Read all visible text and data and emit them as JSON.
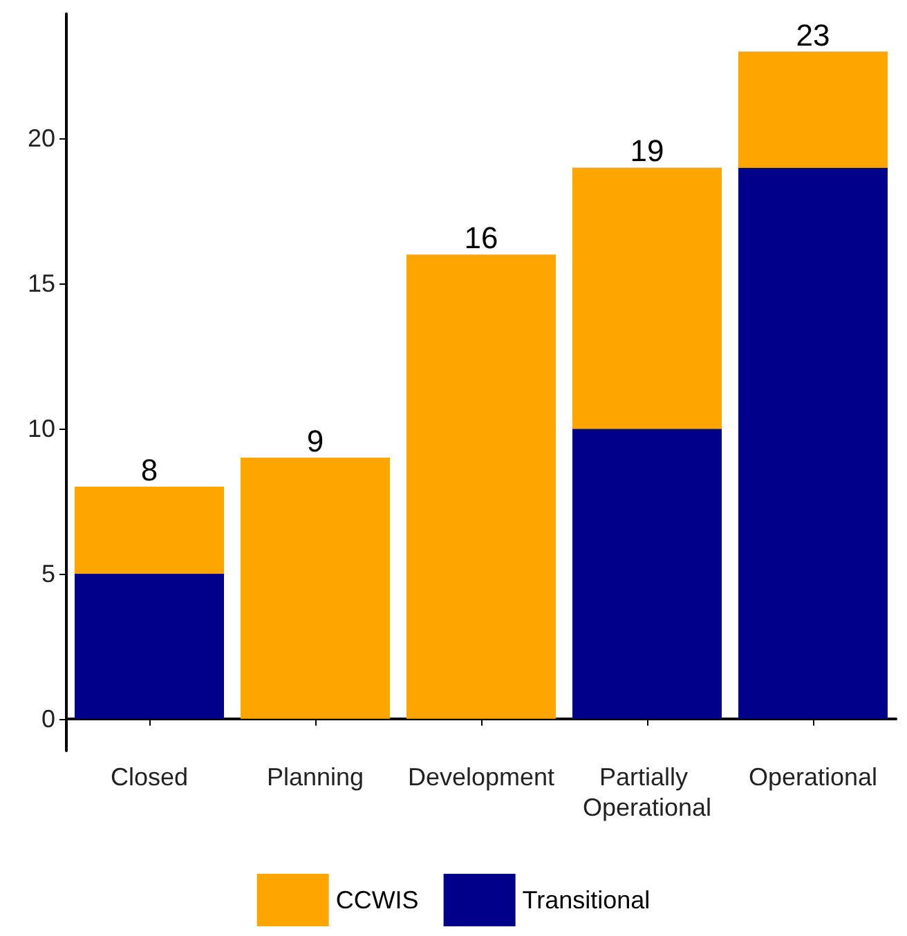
{
  "chart_data": {
    "type": "bar",
    "stacked": true,
    "categories": [
      "Closed",
      "Planning",
      "Development",
      "Partially Operational",
      "Operational"
    ],
    "series": [
      {
        "name": "Transitional",
        "color": "#00008b",
        "values": [
          5,
          0,
          0,
          10,
          19
        ]
      },
      {
        "name": "CCWIS",
        "color": "#ffa500",
        "values": [
          3,
          9,
          16,
          9,
          4
        ]
      }
    ],
    "totals": [
      "8",
      "9",
      "16",
      "19",
      "23"
    ],
    "ylim": [
      -1.1,
      24.3
    ],
    "yticks": [
      0,
      5,
      10,
      15,
      20
    ],
    "grid": false,
    "legend": "bottom"
  }
}
